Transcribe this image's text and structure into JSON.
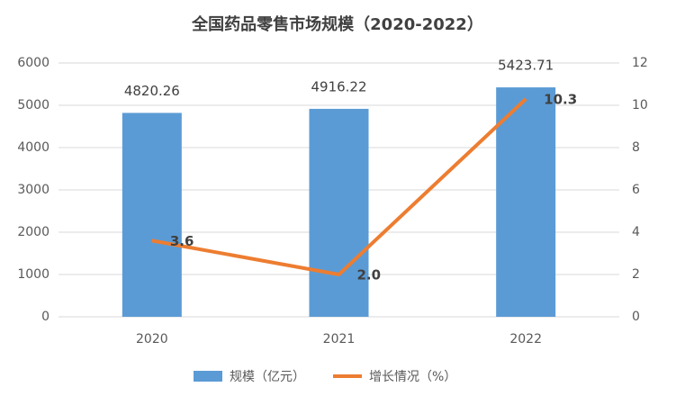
{
  "chart_data": {
    "type": "bar-line",
    "title": "全国药品零售市场规模（2020-2022）",
    "categories": [
      "2020",
      "2021",
      "2022"
    ],
    "series": [
      {
        "name": "规模（亿元）",
        "type": "bar",
        "color": "#5b9bd5",
        "values": [
          4820.26,
          4916.22,
          5423.71
        ]
      },
      {
        "name": "增长情况（%）",
        "type": "line",
        "axis": "y2",
        "color": "#ed7d31",
        "values": [
          3.6,
          2.0,
          10.3
        ],
        "value_labels": [
          "3.6",
          "2.0",
          "10.3"
        ]
      }
    ],
    "ylim": [
      0,
      6000
    ],
    "yticks": [
      0,
      1000,
      2000,
      3000,
      4000,
      5000,
      6000
    ],
    "y2lim": [
      0,
      12
    ],
    "y2ticks": [
      0,
      2,
      4,
      6,
      8,
      10,
      12
    ],
    "grid": true,
    "legend": "bottom"
  }
}
